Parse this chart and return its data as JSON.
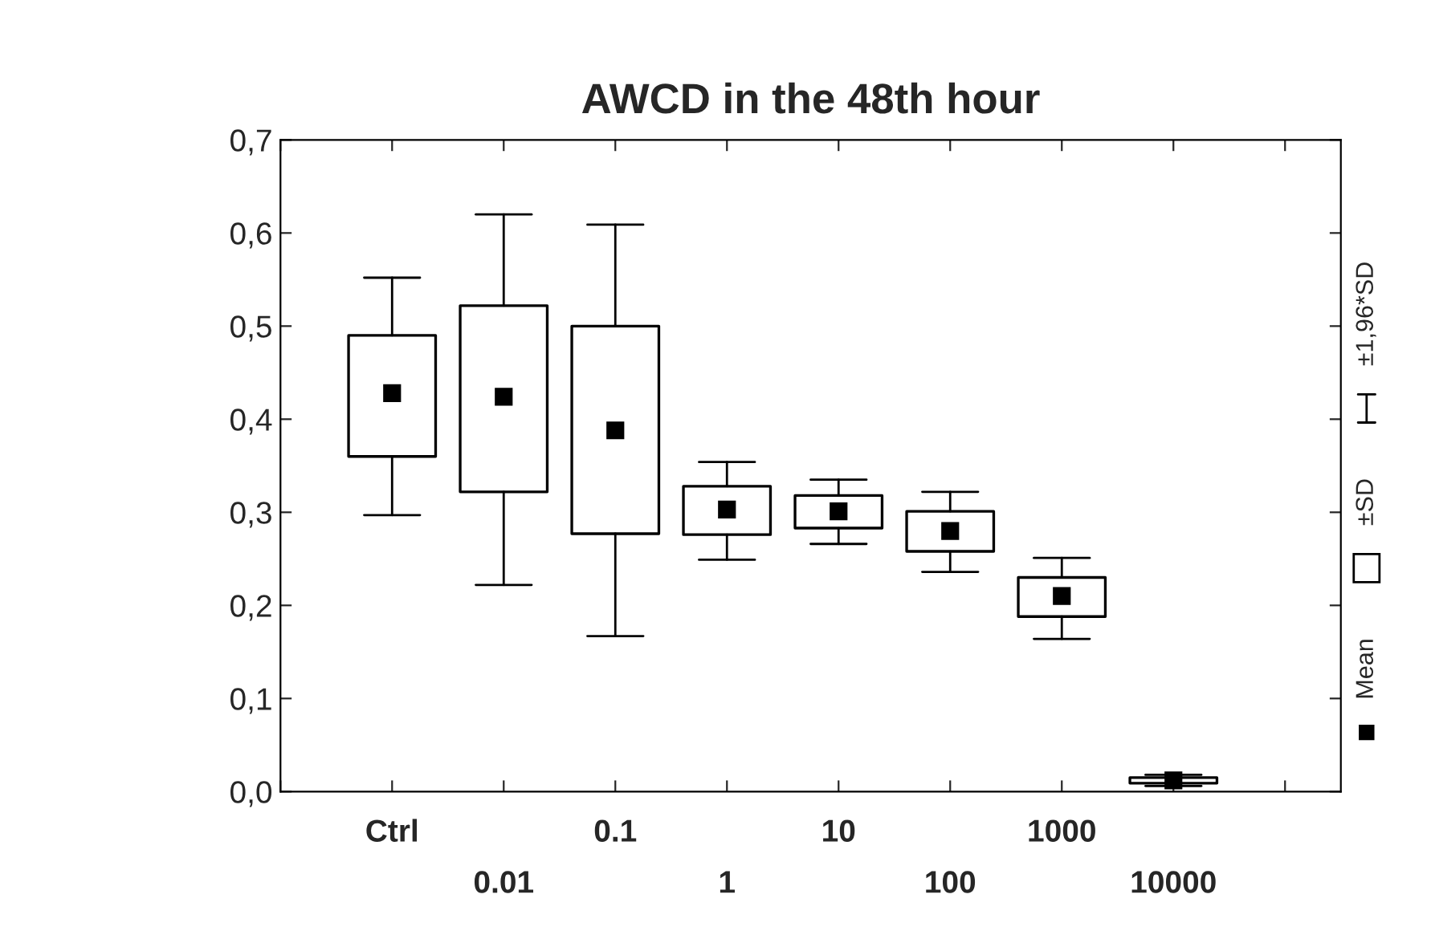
{
  "chart_data": {
    "type": "box",
    "title": "AWCD in the 48th hour",
    "categories": [
      "Ctrl",
      "0.01",
      "0.1",
      "1",
      "10",
      "100",
      "1000",
      "10000"
    ],
    "boxes": [
      {
        "low": 0.297,
        "q1": 0.36,
        "mean": 0.428,
        "q3": 0.49,
        "high": 0.552
      },
      {
        "low": 0.222,
        "q1": 0.322,
        "mean": 0.424,
        "q3": 0.522,
        "high": 0.62
      },
      {
        "low": 0.167,
        "q1": 0.277,
        "mean": 0.388,
        "q3": 0.5,
        "high": 0.609
      },
      {
        "low": 0.249,
        "q1": 0.276,
        "mean": 0.303,
        "q3": 0.328,
        "high": 0.354
      },
      {
        "low": 0.266,
        "q1": 0.283,
        "mean": 0.301,
        "q3": 0.318,
        "high": 0.335
      },
      {
        "low": 0.236,
        "q1": 0.258,
        "mean": 0.28,
        "q3": 0.301,
        "high": 0.322
      },
      {
        "low": 0.164,
        "q1": 0.188,
        "mean": 0.21,
        "q3": 0.23,
        "high": 0.251
      },
      {
        "low": 0.006,
        "q1": 0.009,
        "mean": 0.012,
        "q3": 0.015,
        "high": 0.018
      }
    ],
    "color": "#000000",
    "ylim": [
      0,
      0.7
    ],
    "yticks": [
      {
        "value": 0,
        "label": "0,0"
      },
      {
        "value": 0.1,
        "label": "0,1"
      },
      {
        "value": 0.2,
        "label": "0,2"
      },
      {
        "value": 0.3,
        "label": "0,3"
      },
      {
        "value": 0.4,
        "label": "0,4"
      },
      {
        "value": 0.5,
        "label": "0,5"
      },
      {
        "value": 0.6,
        "label": "0,6"
      },
      {
        "value": 0.7,
        "label": "0,7"
      }
    ],
    "grid": false,
    "marker": "square",
    "annotations": [
      "Mean",
      "±SD",
      "±1,96*SD"
    ]
  }
}
